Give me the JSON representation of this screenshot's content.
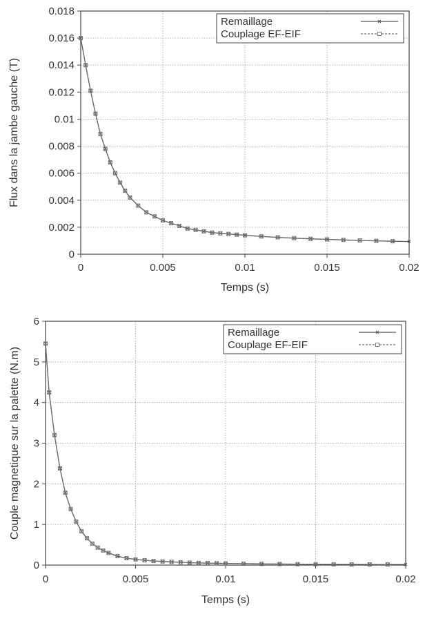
{
  "chart_data": [
    {
      "type": "line",
      "xlabel": "Temps (s)",
      "ylabel": "Flux dans la jambe gauche (T)",
      "xlim": [
        0,
        0.02
      ],
      "ylim": [
        0,
        0.018
      ],
      "xticks": [
        "0",
        "0.005",
        "0.01",
        "0.015",
        "0.02"
      ],
      "yticks": [
        "0",
        "0.002",
        "0.004",
        "0.006",
        "0.008",
        "0.01",
        "0.012",
        "0.014",
        "0.016",
        "0.018"
      ],
      "grid": true,
      "legend_position": "top-right",
      "series": [
        {
          "name": "Remaillage",
          "marker": "x",
          "line": "solid",
          "x": [
            0,
            0.0003,
            0.0006,
            0.0009,
            0.0012,
            0.0015,
            0.0018,
            0.0021,
            0.0024,
            0.0027,
            0.003,
            0.0035,
            0.004,
            0.0045,
            0.005,
            0.0055,
            0.006,
            0.0065,
            0.007,
            0.0075,
            0.008,
            0.0085,
            0.009,
            0.0095,
            0.01,
            0.011,
            0.012,
            0.013,
            0.014,
            0.015,
            0.016,
            0.017,
            0.018,
            0.019,
            0.02
          ],
          "values": [
            0.016,
            0.014,
            0.0121,
            0.0104,
            0.0089,
            0.0078,
            0.0068,
            0.006,
            0.0053,
            0.0047,
            0.0042,
            0.0036,
            0.0031,
            0.0028,
            0.0025,
            0.0023,
            0.0021,
            0.0019,
            0.0018,
            0.0017,
            0.0016,
            0.00155,
            0.0015,
            0.00145,
            0.0014,
            0.00132,
            0.00125,
            0.00119,
            0.00114,
            0.0011,
            0.00106,
            0.00102,
            0.00099,
            0.00096,
            0.00094
          ]
        },
        {
          "name": "Couplage EF-EIF",
          "marker": "square",
          "line": "dashed",
          "x": [
            0,
            0.0003,
            0.0006,
            0.0009,
            0.0012,
            0.0015,
            0.0018,
            0.0021,
            0.0024,
            0.0027,
            0.003,
            0.0035,
            0.004,
            0.0045,
            0.005,
            0.0055,
            0.006,
            0.0065,
            0.007,
            0.0075,
            0.008,
            0.0085,
            0.009,
            0.0095,
            0.01,
            0.011,
            0.012,
            0.013,
            0.014,
            0.015,
            0.016,
            0.017,
            0.018,
            0.019
          ],
          "values": [
            0.016,
            0.014,
            0.0121,
            0.0104,
            0.0089,
            0.0078,
            0.0068,
            0.006,
            0.0053,
            0.0047,
            0.0042,
            0.0036,
            0.0031,
            0.0028,
            0.0025,
            0.0023,
            0.0021,
            0.0019,
            0.0018,
            0.0017,
            0.0016,
            0.00155,
            0.0015,
            0.00145,
            0.0014,
            0.00132,
            0.00125,
            0.00119,
            0.00114,
            0.0011,
            0.00106,
            0.00102,
            0.00099,
            0.00096
          ]
        }
      ]
    },
    {
      "type": "line",
      "xlabel": "Temps (s)",
      "ylabel": "Couple magnetique sur la palette (N.m)",
      "xlim": [
        0,
        0.02
      ],
      "ylim": [
        0,
        6
      ],
      "xticks": [
        "0",
        "0.005",
        "0.01",
        "0.015",
        "0.02"
      ],
      "yticks": [
        "0",
        "1",
        "2",
        "3",
        "4",
        "5",
        "6"
      ],
      "grid": true,
      "legend_position": "top-right",
      "series": [
        {
          "name": "Remaillage",
          "marker": "x",
          "line": "solid",
          "x": [
            0,
            0.0002,
            0.0005,
            0.0008,
            0.0011,
            0.0014,
            0.0017,
            0.002,
            0.0023,
            0.0026,
            0.0029,
            0.0032,
            0.0035,
            0.004,
            0.0045,
            0.005,
            0.0055,
            0.006,
            0.0065,
            0.007,
            0.0075,
            0.008,
            0.0085,
            0.009,
            0.0095,
            0.01,
            0.011,
            0.012,
            0.013,
            0.014,
            0.015,
            0.016,
            0.017,
            0.018,
            0.019,
            0.02
          ],
          "values": [
            5.45,
            4.25,
            3.2,
            2.38,
            1.78,
            1.38,
            1.07,
            0.83,
            0.66,
            0.53,
            0.43,
            0.36,
            0.3,
            0.22,
            0.17,
            0.14,
            0.12,
            0.1,
            0.09,
            0.08,
            0.07,
            0.06,
            0.055,
            0.05,
            0.045,
            0.04,
            0.035,
            0.03,
            0.027,
            0.024,
            0.022,
            0.02,
            0.018,
            0.017,
            0.016,
            0.015
          ]
        },
        {
          "name": "Couplage EF-EIF",
          "marker": "square",
          "line": "dashed",
          "x": [
            0,
            0.0002,
            0.0005,
            0.0008,
            0.0011,
            0.0014,
            0.0017,
            0.002,
            0.0023,
            0.0026,
            0.0029,
            0.0032,
            0.0035,
            0.004,
            0.0045,
            0.005,
            0.0055,
            0.006,
            0.0065,
            0.007,
            0.0075,
            0.008,
            0.0085,
            0.009,
            0.0095,
            0.01,
            0.011,
            0.012,
            0.013,
            0.014,
            0.015,
            0.016,
            0.017,
            0.018,
            0.019
          ],
          "values": [
            5.45,
            4.25,
            3.2,
            2.38,
            1.78,
            1.38,
            1.07,
            0.83,
            0.66,
            0.53,
            0.43,
            0.36,
            0.3,
            0.22,
            0.17,
            0.14,
            0.12,
            0.1,
            0.09,
            0.08,
            0.07,
            0.06,
            0.055,
            0.05,
            0.045,
            0.04,
            0.035,
            0.03,
            0.027,
            0.024,
            0.022,
            0.02,
            0.018,
            0.017,
            0.016
          ]
        }
      ]
    }
  ]
}
